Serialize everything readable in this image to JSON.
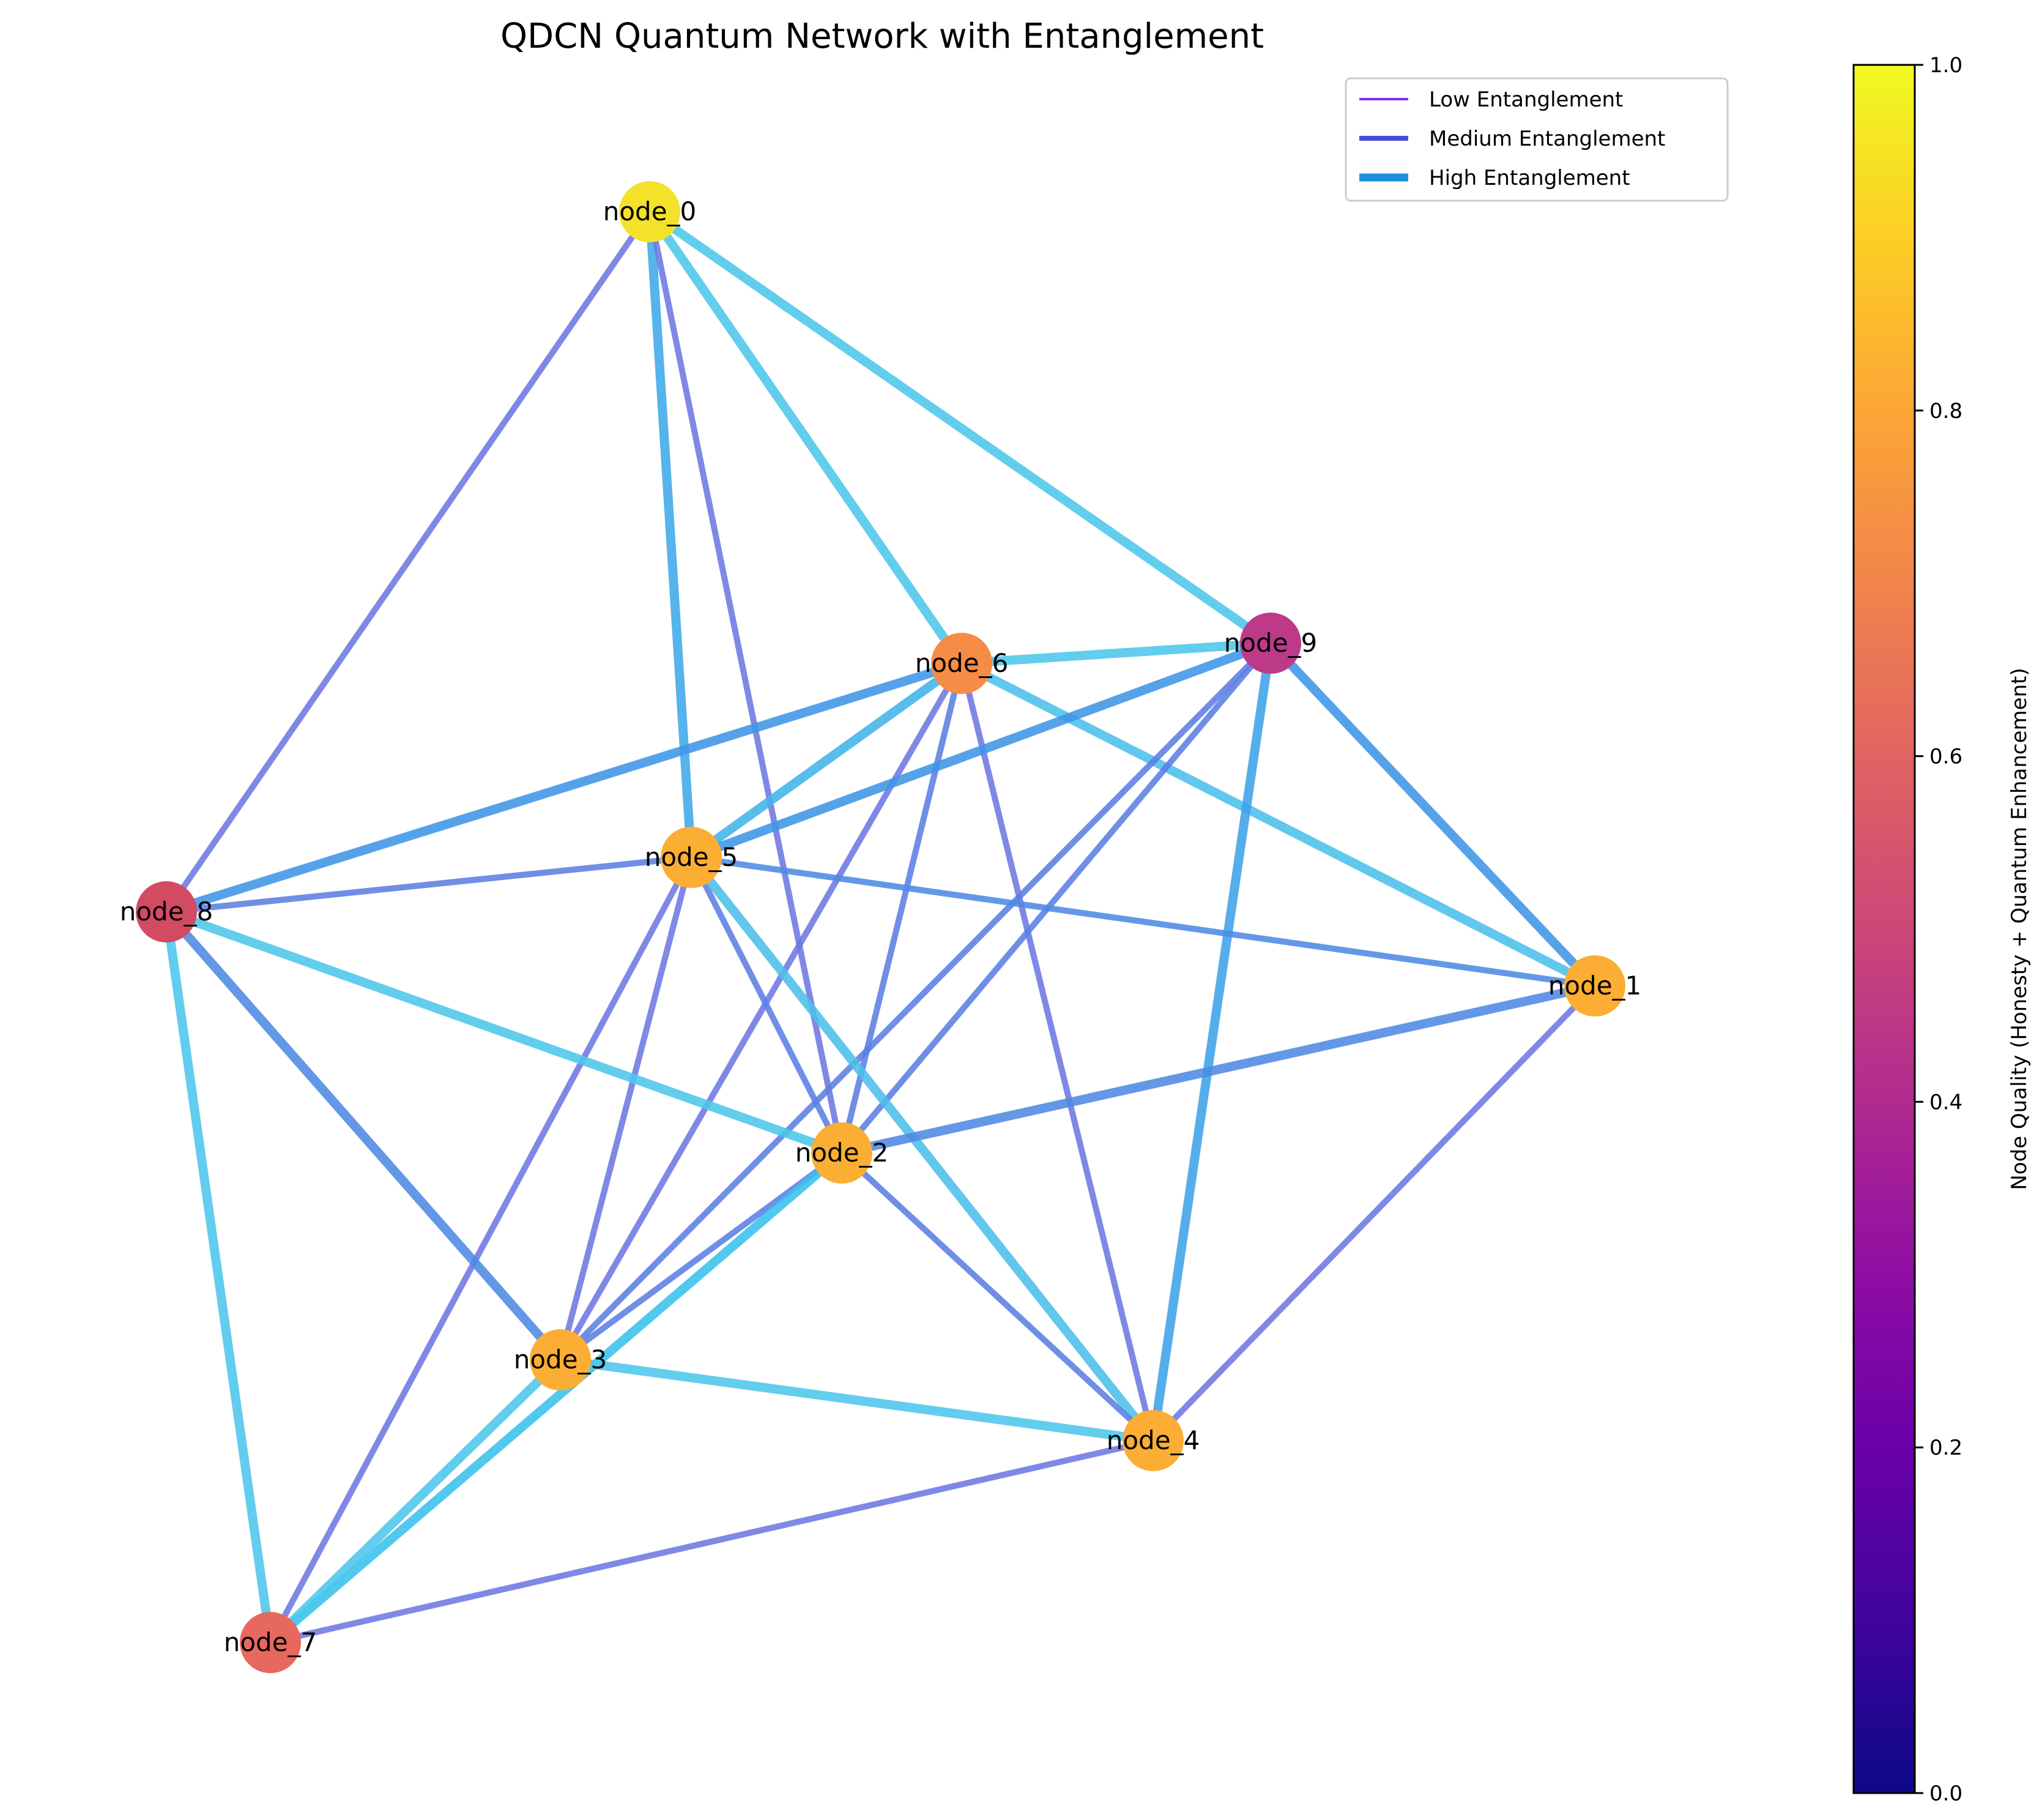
{
  "title": "QDCN Quantum Network with Entanglement",
  "legend": [
    {
      "label": "Low Entanglement",
      "color": "#8a2be2",
      "level": "low"
    },
    {
      "label": "Medium Entanglement",
      "color": "#4b4bdc",
      "level": "medium"
    },
    {
      "label": "High Entanglement",
      "color": "#1e90dc",
      "level": "high"
    }
  ],
  "colorbar": {
    "label": "Node Quality (Honesty + Quantum Enhancement)",
    "colormap": "plasma",
    "min": 0.0,
    "max": 1.0,
    "ticks": [
      "0.0",
      "0.2",
      "0.4",
      "0.6",
      "0.8",
      "1.0"
    ]
  },
  "nodes": [
    {
      "id": "node_0",
      "quality": 0.95,
      "color": "#f3e12a"
    },
    {
      "id": "node_1",
      "quality": 0.86,
      "color": "#fbae33"
    },
    {
      "id": "node_2",
      "quality": 0.86,
      "color": "#fbae33"
    },
    {
      "id": "node_3",
      "quality": 0.86,
      "color": "#fbae33"
    },
    {
      "id": "node_4",
      "quality": 0.86,
      "color": "#fbae33"
    },
    {
      "id": "node_5",
      "quality": 0.86,
      "color": "#fbae33"
    },
    {
      "id": "node_6",
      "quality": 0.75,
      "color": "#f68c45"
    },
    {
      "id": "node_7",
      "quality": 0.62,
      "color": "#e6685e"
    },
    {
      "id": "node_8",
      "quality": 0.55,
      "color": "#d24b63"
    },
    {
      "id": "node_9",
      "quality": 0.46,
      "color": "#bc3a88"
    }
  ],
  "edges": [
    {
      "source": "node_0",
      "target": "node_8",
      "level": "medium",
      "color": "#6e78e2"
    },
    {
      "source": "node_0",
      "target": "node_5",
      "level": "high",
      "color": "#3fa9e8"
    },
    {
      "source": "node_0",
      "target": "node_2",
      "level": "medium",
      "color": "#6e78e2"
    },
    {
      "source": "node_0",
      "target": "node_6",
      "level": "high",
      "color": "#4cc6ea"
    },
    {
      "source": "node_0",
      "target": "node_9",
      "level": "high",
      "color": "#4cc6ea"
    },
    {
      "source": "node_6",
      "target": "node_9",
      "level": "high",
      "color": "#4cc6ea"
    },
    {
      "source": "node_6",
      "target": "node_8",
      "level": "high",
      "color": "#3f95e6"
    },
    {
      "source": "node_6",
      "target": "node_5",
      "level": "high",
      "color": "#42b4e8"
    },
    {
      "source": "node_6",
      "target": "node_1",
      "level": "high",
      "color": "#4cbfe9"
    },
    {
      "source": "node_6",
      "target": "node_2",
      "level": "medium",
      "color": "#5b7fe4"
    },
    {
      "source": "node_6",
      "target": "node_3",
      "level": "medium",
      "color": "#6e78e2"
    },
    {
      "source": "node_6",
      "target": "node_4",
      "level": "medium",
      "color": "#6e78e2"
    },
    {
      "source": "node_9",
      "target": "node_5",
      "level": "high",
      "color": "#3f95e6"
    },
    {
      "source": "node_9",
      "target": "node_1",
      "level": "high",
      "color": "#3f95e6"
    },
    {
      "source": "node_9",
      "target": "node_2",
      "level": "medium",
      "color": "#5b7fe4"
    },
    {
      "source": "node_9",
      "target": "node_3",
      "level": "medium",
      "color": "#5b7fe4"
    },
    {
      "source": "node_9",
      "target": "node_4",
      "level": "high",
      "color": "#3fa2e8"
    },
    {
      "source": "node_5",
      "target": "node_8",
      "level": "medium",
      "color": "#5b7fe4"
    },
    {
      "source": "node_5",
      "target": "node_1",
      "level": "medium",
      "color": "#4f8ae4"
    },
    {
      "source": "node_5",
      "target": "node_2",
      "level": "medium",
      "color": "#5b7fe4"
    },
    {
      "source": "node_5",
      "target": "node_3",
      "level": "medium",
      "color": "#6e78e2"
    },
    {
      "source": "node_5",
      "target": "node_7",
      "level": "medium",
      "color": "#6e78e2"
    },
    {
      "source": "node_5",
      "target": "node_4",
      "level": "high",
      "color": "#4cbfe9"
    },
    {
      "source": "node_8",
      "target": "node_2",
      "level": "high",
      "color": "#4cc6ea"
    },
    {
      "source": "node_8",
      "target": "node_3",
      "level": "high",
      "color": "#4f8ae4"
    },
    {
      "source": "node_8",
      "target": "node_7",
      "level": "high",
      "color": "#4cc6ea"
    },
    {
      "source": "node_1",
      "target": "node_2",
      "level": "high",
      "color": "#4f8ae4"
    },
    {
      "source": "node_1",
      "target": "node_4",
      "level": "medium",
      "color": "#6e78e2"
    },
    {
      "source": "node_2",
      "target": "node_3",
      "level": "medium",
      "color": "#5b7fe4"
    },
    {
      "source": "node_2",
      "target": "node_7",
      "level": "high",
      "color": "#39c2ec"
    },
    {
      "source": "node_2",
      "target": "node_4",
      "level": "medium",
      "color": "#5b7fe4"
    },
    {
      "source": "node_3",
      "target": "node_4",
      "level": "high",
      "color": "#4cc6ea"
    },
    {
      "source": "node_3",
      "target": "node_7",
      "level": "high",
      "color": "#4cc6ea"
    },
    {
      "source": "node_7",
      "target": "node_4",
      "level": "medium",
      "color": "#6e78e2"
    }
  ]
}
